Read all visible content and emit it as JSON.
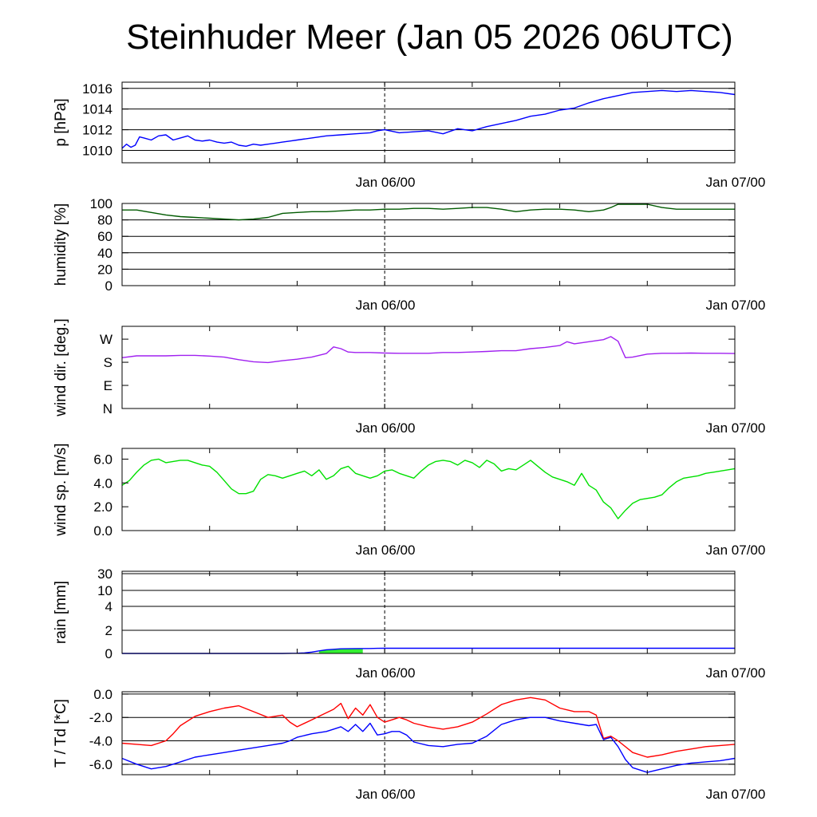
{
  "title": "Steinhuder Meer (Jan 05 2026 06UTC)",
  "colors": {
    "pressure": "#0000ff",
    "humidity": "#005a00",
    "wind_dir": "#a020f0",
    "wind_speed": "#00e000",
    "rain_line": "#0000ff",
    "rain_fill": "#33ee33",
    "temperature": "#ff0000",
    "dewpoint": "#0000ff"
  },
  "chart_data": [
    {
      "type": "line",
      "ylabel": "p [hPa]",
      "x_tick_labels": [
        "Jan 06/00",
        "Jan 07/00"
      ],
      "xlim": [
        0,
        42
      ],
      "ylim": [
        1008.8,
        1016.6
      ],
      "yticks": [
        1010,
        1012,
        1014,
        1016
      ],
      "ytick_labels": [
        "1010",
        "1012",
        "1014",
        "1016"
      ],
      "hgrid": [
        1010,
        1012,
        1014,
        1016
      ],
      "grid": true,
      "series": [
        {
          "x": [
            0,
            0.3,
            0.6,
            0.9,
            1.2,
            1.5,
            2.0,
            2.5,
            3.0,
            3.5,
            4.0,
            4.5,
            5.0,
            5.5,
            6.0,
            6.5,
            7,
            7.5,
            8,
            8.5,
            9,
            9.5,
            10,
            10.5,
            11,
            11.5,
            12,
            13,
            14,
            15,
            16,
            17,
            17.5,
            18,
            19,
            20,
            21,
            22,
            23,
            24,
            25,
            26,
            27,
            28,
            29,
            30,
            31,
            32,
            33,
            34,
            35,
            36,
            37,
            38,
            39,
            40,
            41,
            42
          ],
          "y": [
            1010.2,
            1010.6,
            1010.3,
            1010.5,
            1011.3,
            1011.2,
            1011.0,
            1011.4,
            1011.5,
            1011.0,
            1011.2,
            1011.4,
            1011.0,
            1010.9,
            1011.0,
            1010.8,
            1010.7,
            1010.8,
            1010.5,
            1010.4,
            1010.6,
            1010.5,
            1010.6,
            1010.7,
            1010.8,
            1010.9,
            1011.0,
            1011.2,
            1011.4,
            1011.5,
            1011.6,
            1011.7,
            1011.9,
            1012.0,
            1011.7,
            1011.8,
            1011.9,
            1011.6,
            1012.1,
            1011.9,
            1012.3,
            1012.6,
            1012.9,
            1013.3,
            1013.5,
            1013.9,
            1014.1,
            1014.6,
            1015.0,
            1015.3,
            1015.6,
            1015.7,
            1015.8,
            1015.7,
            1015.8,
            1015.7,
            1015.6,
            1015.4
          ]
        }
      ]
    },
    {
      "type": "line",
      "ylabel": "humidity [%]",
      "x_tick_labels": [
        "Jan 06/00",
        "Jan 07/00"
      ],
      "xlim": [
        0,
        42
      ],
      "ylim": [
        0,
        100
      ],
      "yticks": [
        0,
        20,
        40,
        60,
        80,
        100
      ],
      "ytick_labels": [
        "0",
        "20",
        "40",
        "60",
        "80",
        "100"
      ],
      "hgrid": [
        20,
        40,
        60,
        80,
        100
      ],
      "grid": true,
      "series": [
        {
          "x": [
            0,
            1,
            2,
            3,
            4,
            5,
            6,
            7,
            8,
            9,
            10,
            11,
            12,
            13,
            14,
            15,
            16,
            17,
            18,
            19,
            20,
            21,
            22,
            23,
            24,
            25,
            26,
            27,
            28,
            29,
            30,
            31,
            32,
            33,
            33.5,
            34,
            35,
            36,
            37,
            38,
            39,
            40,
            41,
            42
          ],
          "y": [
            92,
            92,
            89,
            86,
            84,
            83,
            82,
            81,
            80,
            81,
            83,
            88,
            89,
            90,
            90,
            91,
            92,
            92,
            93,
            93,
            94,
            94,
            93,
            94,
            95,
            95,
            93,
            90,
            92,
            93,
            93,
            92,
            90,
            92,
            95,
            99,
            99,
            99,
            95,
            93,
            93,
            93,
            93,
            93
          ]
        }
      ]
    },
    {
      "type": "line",
      "ylabel": "wind dir. [deg.]",
      "x_tick_labels": [
        "Jan 06/00",
        "Jan 07/00"
      ],
      "xlim": [
        0,
        42
      ],
      "ylim": [
        0,
        320
      ],
      "yticks": [
        0,
        90,
        180,
        270
      ],
      "ytick_labels": [
        "N",
        "E",
        "S",
        "W"
      ],
      "hgrid": [],
      "grid": false,
      "series": [
        {
          "x": [
            0,
            1,
            2,
            3,
            4,
            5,
            6,
            7,
            8,
            9,
            10,
            11,
            12,
            13,
            14,
            14.5,
            15,
            15.5,
            16,
            17,
            18,
            19,
            20,
            21,
            22,
            23,
            24,
            25,
            26,
            27,
            28,
            29,
            30,
            30.5,
            31,
            32,
            33,
            33.5,
            34,
            34.5,
            35,
            36,
            37,
            38,
            39,
            40,
            41,
            42
          ],
          "y": [
            198,
            205,
            205,
            205,
            207,
            207,
            204,
            200,
            190,
            182,
            179,
            186,
            192,
            200,
            214,
            240,
            233,
            220,
            218,
            218,
            216,
            215,
            215,
            215,
            218,
            218,
            220,
            222,
            225,
            225,
            233,
            238,
            245,
            260,
            252,
            260,
            268,
            280,
            262,
            198,
            200,
            212,
            215,
            215,
            216,
            215,
            215,
            214
          ]
        }
      ]
    },
    {
      "type": "line",
      "ylabel": "wind sp. [m/s]",
      "x_tick_labels": [
        "Jan 06/00",
        "Jan 07/00"
      ],
      "xlim": [
        0,
        42
      ],
      "ylim": [
        0,
        6.9
      ],
      "yticks": [
        0,
        2,
        4,
        6
      ],
      "ytick_labels": [
        "0.0",
        "2.0",
        "4.0",
        "6.0"
      ],
      "hgrid": [],
      "grid": false,
      "series": [
        {
          "x": [
            0,
            0.5,
            1,
            1.5,
            2,
            2.5,
            3,
            3.5,
            4,
            4.5,
            5,
            5.5,
            6,
            6.5,
            7,
            7.5,
            8,
            8.5,
            9,
            9.5,
            10,
            10.5,
            11,
            11.5,
            12,
            12.5,
            13,
            13.5,
            14,
            14.5,
            15,
            15.5,
            16,
            16.5,
            17,
            17.5,
            18,
            18.5,
            19,
            19.5,
            20,
            20.5,
            21,
            21.5,
            22,
            22.5,
            23,
            23.5,
            24,
            24.5,
            25,
            25.5,
            26,
            26.5,
            27,
            27.5,
            28,
            28.5,
            29,
            29.5,
            30,
            30.5,
            31,
            31.5,
            32,
            32.5,
            33,
            33.5,
            34,
            34.5,
            35,
            35.5,
            36,
            36.5,
            37,
            37.5,
            38,
            38.5,
            39,
            39.5,
            40,
            40.5,
            41,
            41.5,
            42
          ],
          "y": [
            3.8,
            4.2,
            4.9,
            5.5,
            5.9,
            6.0,
            5.7,
            5.8,
            5.9,
            5.9,
            5.7,
            5.5,
            5.4,
            4.9,
            4.2,
            3.5,
            3.1,
            3.1,
            3.3,
            4.3,
            4.7,
            4.6,
            4.4,
            4.6,
            4.8,
            5.0,
            4.6,
            5.1,
            4.3,
            4.6,
            5.2,
            5.4,
            4.8,
            4.6,
            4.4,
            4.6,
            5.0,
            5.1,
            4.8,
            4.6,
            4.4,
            5.0,
            5.5,
            5.8,
            5.9,
            5.8,
            5.5,
            5.9,
            5.7,
            5.3,
            5.9,
            5.6,
            5.0,
            5.2,
            5.1,
            5.5,
            5.9,
            5.4,
            4.9,
            4.5,
            4.3,
            4.1,
            3.8,
            4.8,
            3.8,
            3.4,
            2.4,
            1.9,
            1.0,
            1.7,
            2.3,
            2.6,
            2.7,
            2.8,
            3.0,
            3.6,
            4.1,
            4.4,
            4.5,
            4.6,
            4.8,
            4.9,
            5.0,
            5.1,
            5.2
          ]
        }
      ]
    },
    {
      "type": "area",
      "ylabel": "rain [mm]",
      "x_tick_labels": [
        "Jan 06/00",
        "Jan 07/00"
      ],
      "xlim": [
        0,
        42
      ],
      "ylim": [
        0,
        30
      ],
      "y_scale": "nonlinear",
      "yticks": [
        0,
        2,
        4,
        10,
        30
      ],
      "ytick_labels": [
        "0",
        "2",
        "4",
        "10",
        "30"
      ],
      "hgrid": [
        2,
        4,
        10,
        30
      ],
      "grid": true,
      "series": [
        {
          "x": [
            0,
            10,
            11,
            12,
            12.5,
            13,
            13.5,
            14,
            15,
            16,
            17,
            17.5,
            18,
            20,
            25,
            30,
            35,
            40,
            42
          ],
          "y": [
            0,
            0,
            0,
            0.02,
            0.05,
            0.12,
            0.22,
            0.32,
            0.4,
            0.42,
            0.43,
            0.44,
            0.45,
            0.45,
            0.45,
            0.45,
            0.45,
            0.45,
            0.45
          ]
        }
      ],
      "fill_range": [
        13.5,
        16.5
      ]
    },
    {
      "type": "line",
      "ylabel": "T / Td [*C]",
      "x_tick_labels": [
        "Jan 06/00",
        "Jan 07/00"
      ],
      "xlim": [
        0,
        42
      ],
      "ylim": [
        -6.9,
        0.2
      ],
      "yticks": [
        0,
        -2,
        -4,
        -6
      ],
      "ytick_labels": [
        "0.0",
        "-2.0",
        "-4.0",
        "-6.0"
      ],
      "hgrid": [
        0,
        -2,
        -4,
        -6
      ],
      "grid": true,
      "series": [
        {
          "x": [
            0,
            1,
            2,
            3,
            3.5,
            4,
            5,
            6,
            7,
            8,
            9,
            10,
            11,
            11.5,
            12,
            13,
            13.5,
            14,
            14.5,
            15,
            15.5,
            16,
            16.5,
            17,
            17.5,
            18,
            18.5,
            19,
            19.5,
            20,
            21,
            22,
            23,
            24,
            25,
            26,
            27,
            28,
            29,
            30,
            31,
            32,
            32.5,
            33,
            33.5,
            34,
            35,
            36,
            37,
            38,
            39,
            40,
            41,
            42
          ],
          "y": [
            -4.2,
            -4.3,
            -4.4,
            -4.0,
            -3.4,
            -2.7,
            -1.9,
            -1.5,
            -1.2,
            -1.0,
            -1.5,
            -2.0,
            -1.8,
            -2.4,
            -2.8,
            -2.2,
            -1.9,
            -1.6,
            -1.3,
            -0.8,
            -2.1,
            -1.2,
            -1.8,
            -0.9,
            -2.0,
            -2.4,
            -2.2,
            -2.0,
            -2.2,
            -2.5,
            -2.8,
            -3.0,
            -2.8,
            -2.4,
            -1.7,
            -0.9,
            -0.5,
            -0.3,
            -0.5,
            -1.2,
            -1.5,
            -1.5,
            -1.8,
            -3.8,
            -3.6,
            -4.0,
            -5.0,
            -5.4,
            -5.2,
            -4.9,
            -4.7,
            -4.5,
            -4.4,
            -4.3
          ]
        },
        {
          "x": [
            0,
            1,
            2,
            3,
            4,
            5,
            6,
            7,
            8,
            9,
            10,
            11,
            11.5,
            12,
            13,
            14,
            14.5,
            15,
            15.5,
            16,
            16.5,
            17,
            17.5,
            18,
            18.5,
            19,
            19.5,
            20,
            21,
            22,
            23,
            24,
            25,
            26,
            27,
            28,
            29,
            30,
            31,
            32,
            32.5,
            33,
            33.5,
            34,
            34.5,
            35,
            36,
            37,
            38,
            39,
            40,
            41,
            42
          ],
          "y": [
            -5.5,
            -6.0,
            -6.4,
            -6.2,
            -5.8,
            -5.4,
            -5.2,
            -5.0,
            -4.8,
            -4.6,
            -4.4,
            -4.2,
            -4.0,
            -3.7,
            -3.4,
            -3.2,
            -3.0,
            -2.8,
            -3.2,
            -2.6,
            -3.2,
            -2.5,
            -3.5,
            -3.4,
            -3.2,
            -3.2,
            -3.5,
            -4.1,
            -4.4,
            -4.5,
            -4.3,
            -4.2,
            -3.6,
            -2.6,
            -2.2,
            -2.0,
            -2.0,
            -2.3,
            -2.5,
            -2.7,
            -2.6,
            -3.9,
            -3.7,
            -4.5,
            -5.6,
            -6.3,
            -6.7,
            -6.4,
            -6.1,
            -5.9,
            -5.8,
            -5.7,
            -5.5
          ]
        }
      ]
    }
  ]
}
